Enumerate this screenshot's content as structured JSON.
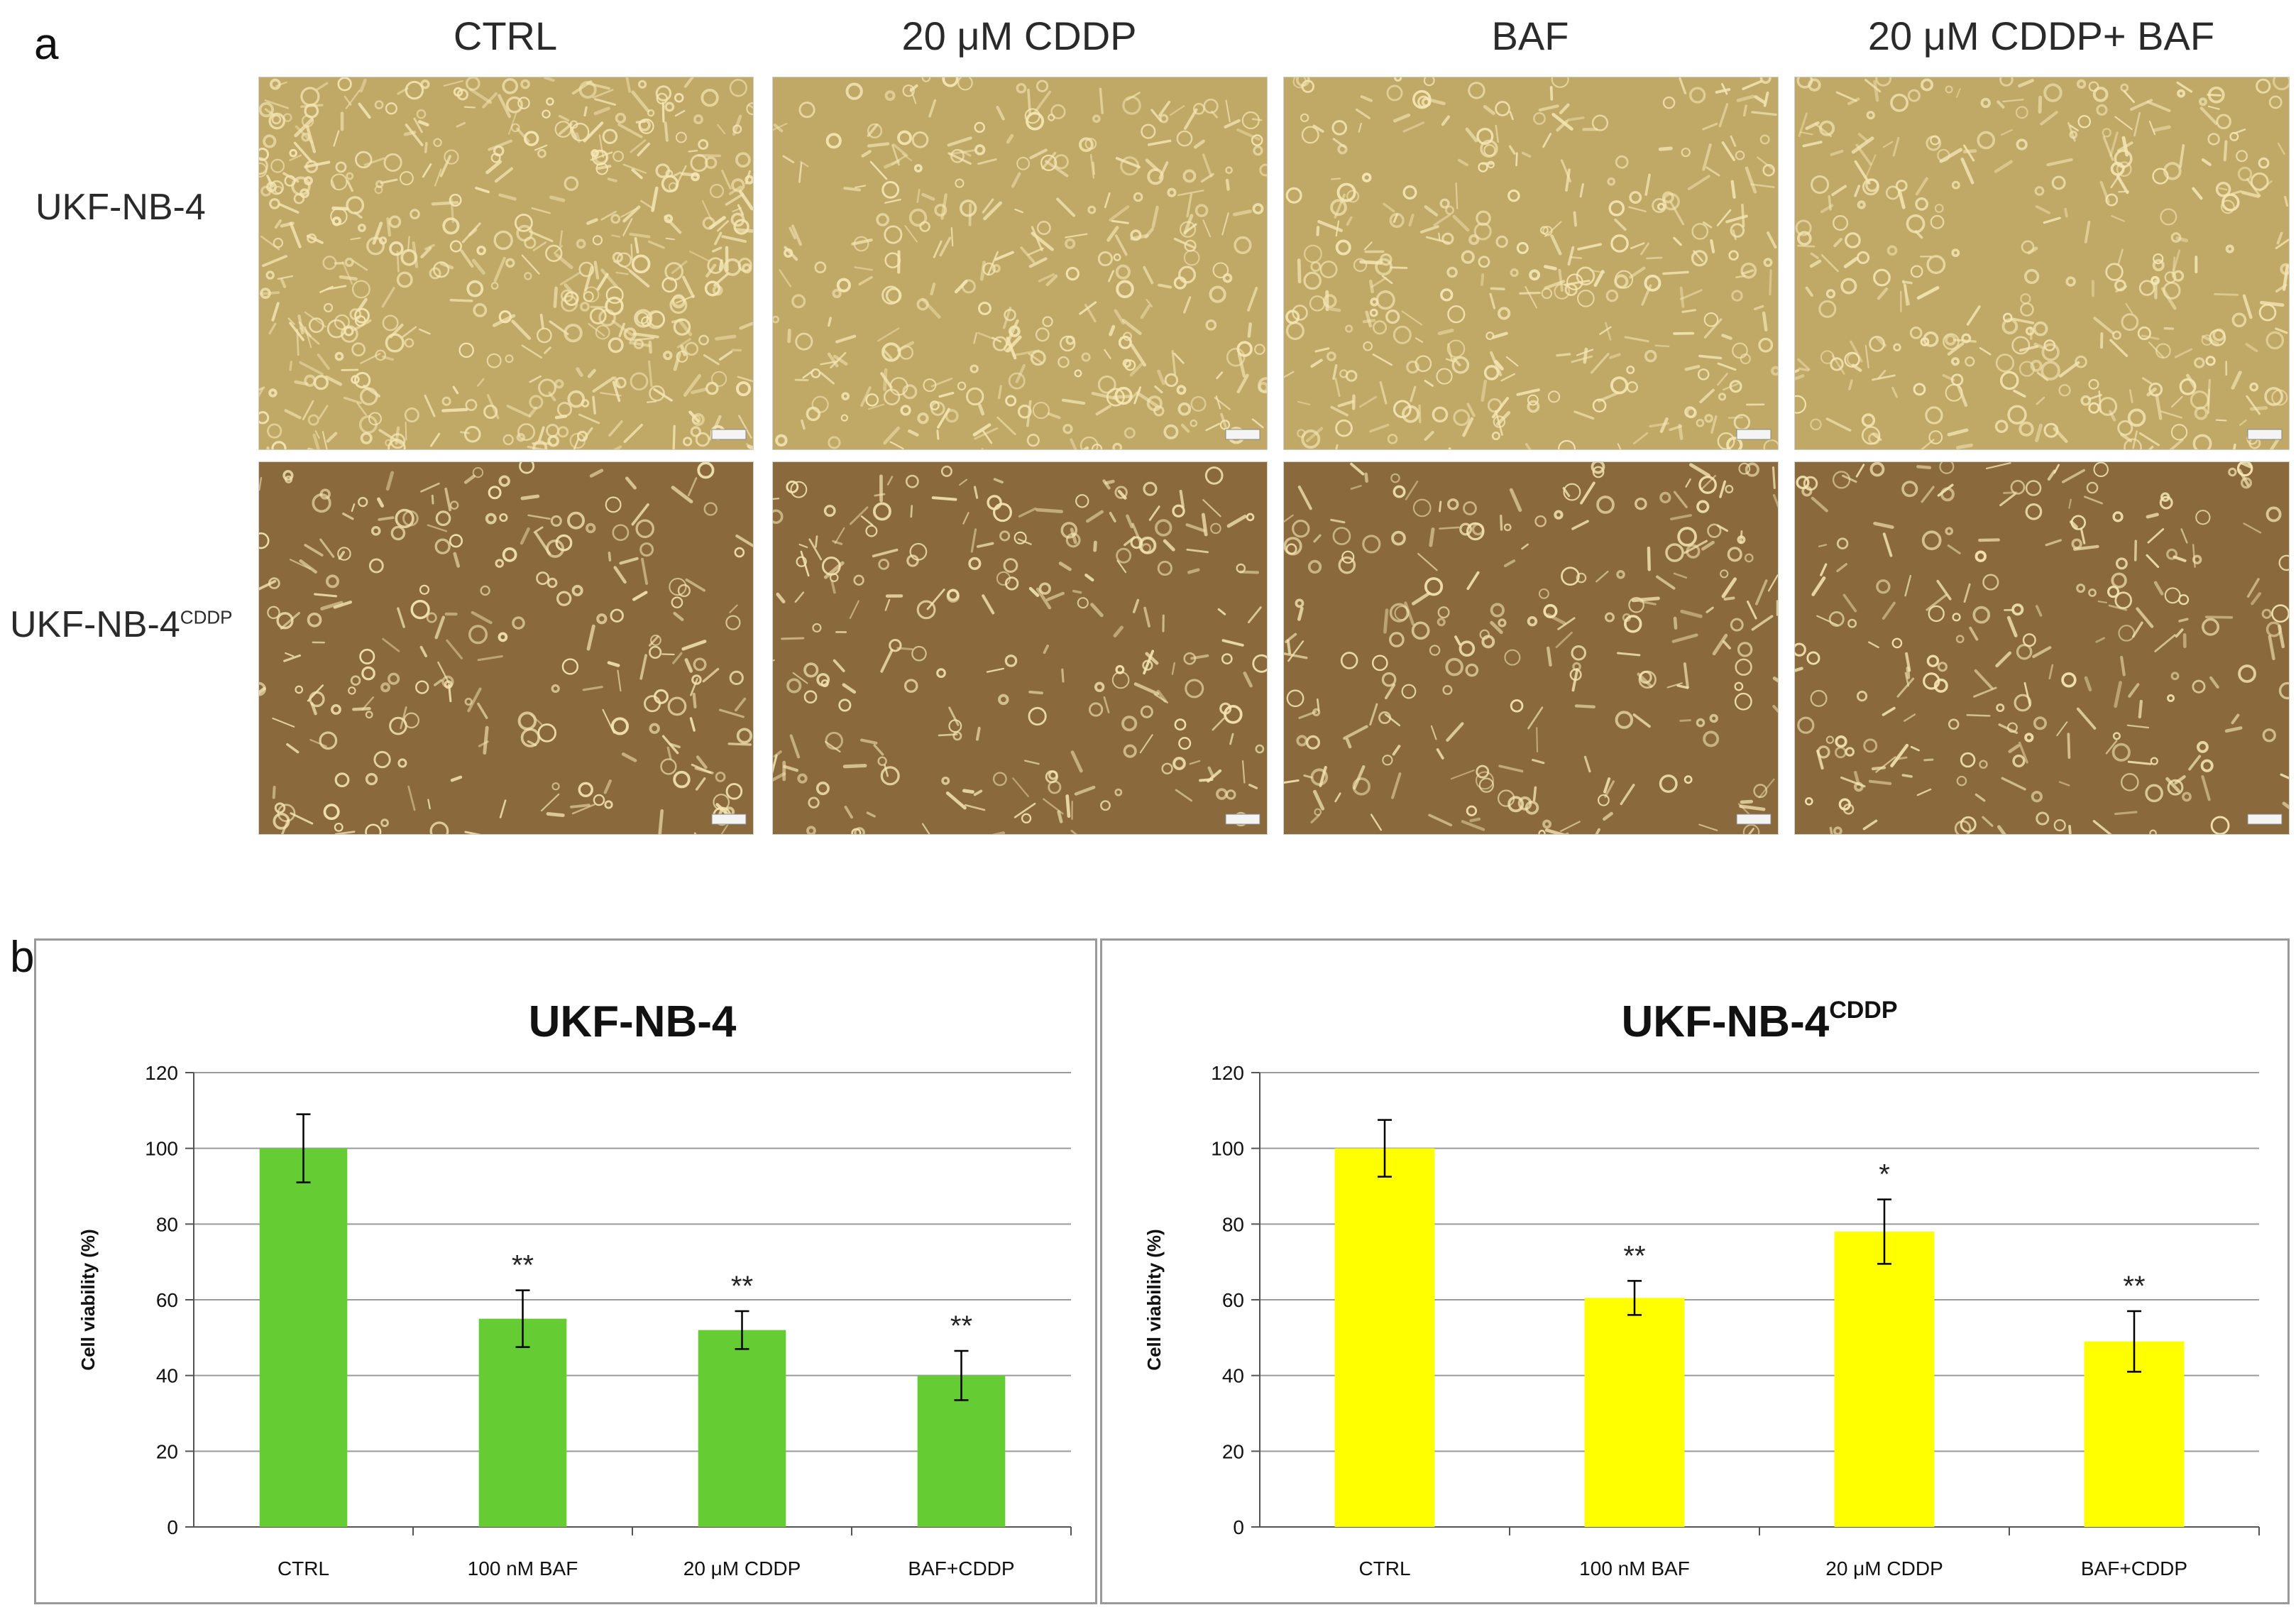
{
  "panels": {
    "a": {
      "label": "a",
      "column_headers": [
        "CTRL",
        "20 μM CDDP",
        "BAF",
        "20 μM CDDP+ BAF"
      ],
      "row_labels": [
        {
          "main": "UKF-NB-4",
          "sup": ""
        },
        {
          "main": "UKF-NB-4",
          "sup": "CDDP"
        }
      ],
      "image_description_note": ""
    },
    "b": {
      "label": "b"
    }
  },
  "chart_data": [
    {
      "type": "bar",
      "title": "UKF-NB-4",
      "title_sup": "",
      "ylabel": "Cell viability  (%)",
      "xlabel": "",
      "categories": [
        "CTRL",
        "100 nM BAF",
        "20 μM CDDP",
        "BAF+CDDP"
      ],
      "values": [
        100,
        55,
        52,
        40
      ],
      "errors": [
        9,
        7.5,
        5,
        6.5
      ],
      "significance": [
        "",
        "**",
        "**",
        "**"
      ],
      "ylim": [
        0,
        120
      ],
      "yticks": [
        0,
        20,
        40,
        60,
        80,
        100,
        120
      ],
      "color": "#66cc33",
      "grid": true
    },
    {
      "type": "bar",
      "title": "UKF-NB-4",
      "title_sup": "CDDP",
      "ylabel": "Cell viability  (%)",
      "xlabel": "",
      "categories": [
        "CTRL",
        "100 nM BAF",
        "20 μM CDDP",
        "BAF+CDDP"
      ],
      "values": [
        100,
        60.5,
        78,
        49
      ],
      "errors": [
        7.5,
        4.5,
        8.5,
        8
      ],
      "significance": [
        "",
        "**",
        "*",
        "**"
      ],
      "ylim": [
        0,
        120
      ],
      "yticks": [
        0,
        20,
        40,
        60,
        80,
        100,
        120
      ],
      "color": "#ffff00",
      "grid": true
    }
  ],
  "colors": {
    "micro_bg_row1": "#c0a866",
    "micro_bg_row2": "#8a6a3c",
    "cell_highlight": "#f5e6b4",
    "grid": "#9a9a9a",
    "axis": "#555555"
  }
}
